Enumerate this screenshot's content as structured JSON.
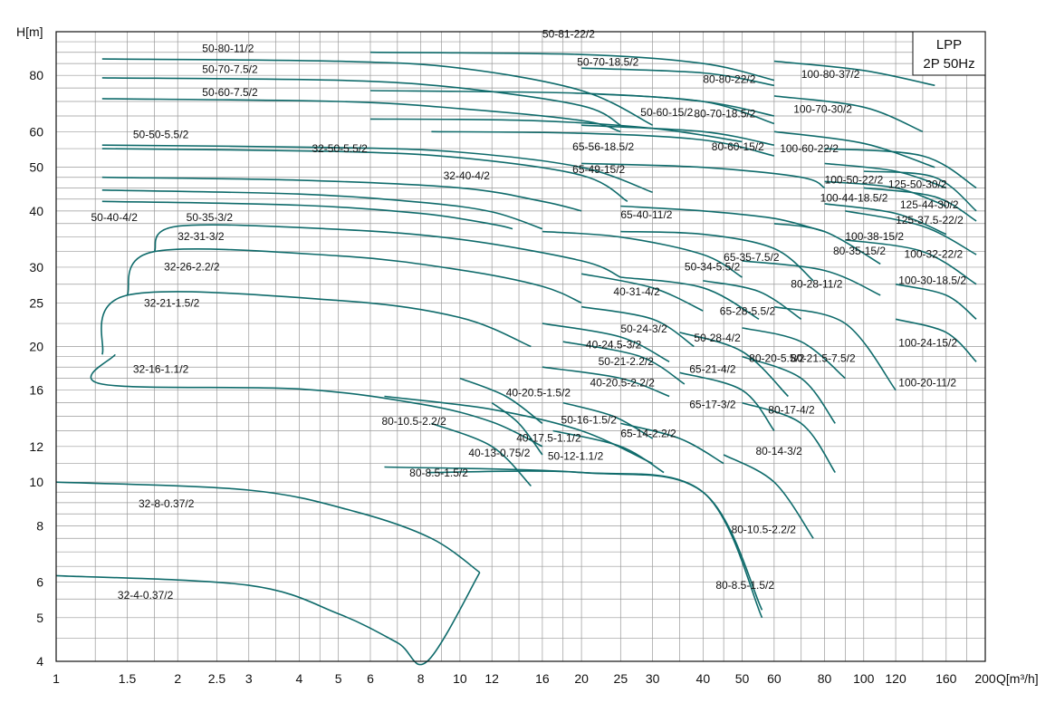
{
  "chart_data": {
    "type": "line",
    "title": "",
    "legend": {
      "line1": "LPP",
      "line2": "2P 50Hz",
      "placement": "top-right"
    },
    "xlabel": "Q[m³/h]",
    "ylabel": "H[m]",
    "xscale": "log",
    "yscale": "log",
    "xlim": [
      1,
      200
    ],
    "ylim": [
      4,
      100
    ],
    "grid": true,
    "color": "#0f6b6b",
    "x_ticks": [
      1,
      1.5,
      2,
      2.5,
      3,
      4,
      5,
      6,
      8,
      10,
      12,
      16,
      20,
      25,
      30,
      40,
      50,
      60,
      80,
      100,
      120,
      160,
      200
    ],
    "x_tick_labels": [
      "1",
      "1.5",
      "2",
      "2.5",
      "3",
      "4",
      "5",
      "6",
      "8",
      "10",
      "12",
      "16",
      "20",
      "25",
      "30",
      "40",
      "50",
      "60",
      "80",
      "100",
      "120",
      "160",
      "200"
    ],
    "y_ticks": [
      4,
      5,
      6,
      8,
      10,
      12,
      16,
      20,
      25,
      30,
      40,
      50,
      60,
      80
    ],
    "y_tick_labels": [
      "4",
      "5",
      "6",
      "8",
      "10",
      "12",
      "16",
      "20",
      "25",
      "30",
      "40",
      "50",
      "60",
      "80"
    ],
    "series": [
      {
        "name": "32-4-0.37/2",
        "x": [
          1,
          3,
          5,
          7,
          8.3
        ],
        "y": [
          6.2,
          5.9,
          5.1,
          4.4,
          4.0
        ],
        "end_x": 11.2,
        "end_y": 6.3
      },
      {
        "name": "32-8-0.37/2",
        "x": [
          1,
          3,
          5.5,
          8.5,
          11.2
        ],
        "y": [
          10.0,
          9.6,
          8.6,
          7.5,
          6.3
        ]
      },
      {
        "name": "32-16-1.1/2",
        "x": [
          1.3,
          4,
          8,
          12,
          16
        ],
        "y": [
          16.5,
          16.1,
          14.9,
          13.6,
          12.0
        ],
        "start_x": 1.4,
        "start_y": 19.2
      },
      {
        "name": "32-21-1.5/2",
        "x": [
          1.5,
          5,
          10,
          15
        ],
        "y": [
          26.0,
          25.3,
          23.2,
          20.0
        ],
        "start_x": 1.3,
        "start_y": 19.2
      },
      {
        "name": "32-26-2.2/2",
        "x": [
          1.75,
          5,
          10,
          16,
          20
        ],
        "y": [
          32.5,
          31.8,
          29.6,
          27.2,
          25.0
        ],
        "start_x": 1.5,
        "start_y": 26.0
      },
      {
        "name": "32-31-3/2",
        "x": [
          2,
          5,
          10,
          20,
          25
        ],
        "y": [
          37.0,
          36.4,
          34.6,
          31.0,
          28.5
        ],
        "start_x": 1.75,
        "start_y": 32.5
      },
      {
        "name": "50-35-3/2",
        "x": [
          1.3,
          4,
          8,
          12,
          13.5
        ],
        "y": [
          42.0,
          41.2,
          39.5,
          37.4,
          36.5
        ]
      },
      {
        "name": "50-40-4/2",
        "x": [
          1.3,
          4,
          8,
          12,
          16
        ],
        "y": [
          44.5,
          43.6,
          41.8,
          39.8,
          36.5
        ]
      },
      {
        "name": "32-40-4/2",
        "x": [
          1.3,
          4,
          10,
          16,
          20
        ],
        "y": [
          47.5,
          46.8,
          45.0,
          42.0,
          40.0
        ]
      },
      {
        "name": "32-50-5.5/2",
        "x": [
          1.3,
          5,
          10,
          20,
          26
        ],
        "y": [
          55.0,
          54.2,
          52.5,
          48.0,
          42.0
        ]
      },
      {
        "name": "50-50-5.5/2",
        "x": [
          1.3,
          5,
          10,
          20,
          30
        ],
        "y": [
          56.0,
          55.3,
          54.0,
          50.0,
          44.0
        ]
      },
      {
        "name": "50-60-7.5/2",
        "x": [
          1.3,
          5,
          10,
          20,
          25
        ],
        "y": [
          71.0,
          70.0,
          67.5,
          63.5,
          60.0
        ]
      },
      {
        "name": "50-70-7.5/2",
        "x": [
          1.3,
          5,
          10,
          20,
          25
        ],
        "y": [
          79.0,
          78.0,
          75.0,
          68.5,
          62.0
        ]
      },
      {
        "name": "50-80-11/2",
        "x": [
          1.3,
          5,
          10,
          20,
          30
        ],
        "y": [
          87.0,
          86.0,
          83.0,
          74.0,
          62.0
        ]
      },
      {
        "name": "50-81-22/2",
        "x": [
          6,
          20,
          40,
          60
        ],
        "y": [
          90.0,
          89.0,
          85.0,
          78.0
        ]
      },
      {
        "name": "50-70-18.5/2",
        "x": [
          6,
          20,
          40,
          60
        ],
        "y": [
          74.0,
          73.0,
          70.0,
          65.0
        ]
      },
      {
        "name": "80-80-22/2",
        "x": [
          20,
          40,
          60
        ],
        "y": [
          83.0,
          81.0,
          76.0
        ]
      },
      {
        "name": "80-70-18.5/2",
        "x": [
          20,
          40,
          60
        ],
        "y": [
          73.0,
          70.0,
          62.5
        ]
      },
      {
        "name": "50-60-15/2",
        "x": [
          6,
          15,
          30,
          50
        ],
        "y": [
          64.0,
          63.5,
          61.0,
          57.0
        ]
      },
      {
        "name": "80-60-15/2",
        "x": [
          20,
          40,
          60
        ],
        "y": [
          62.0,
          60.0,
          56.0
        ]
      },
      {
        "name": "65-56-18.5/2",
        "x": [
          8.5,
          20,
          40,
          60
        ],
        "y": [
          60.0,
          59.5,
          57.5,
          53.0
        ]
      },
      {
        "name": "100-80-37/2",
        "x": [
          60,
          100,
          150
        ],
        "y": [
          86.0,
          82.0,
          76.0
        ]
      },
      {
        "name": "100-70-30/2",
        "x": [
          60,
          100,
          140
        ],
        "y": [
          72.0,
          68.0,
          60.0
        ]
      },
      {
        "name": "100-60-22/2",
        "x": [
          60,
          100,
          150
        ],
        "y": [
          60.0,
          56.5,
          50.0
        ]
      },
      {
        "name": "65-49-15/2",
        "x": [
          20,
          40,
          70,
          80
        ],
        "y": [
          51.0,
          50.0,
          47.5,
          45.0
        ]
      },
      {
        "name": "100-50-22/2",
        "x": [
          80,
          120,
          160
        ],
        "y": [
          51.0,
          49.0,
          45.0
        ]
      },
      {
        "name": "100-44-18.5/2",
        "x": [
          80,
          120,
          160
        ],
        "y": [
          46.5,
          45.0,
          41.0
        ]
      },
      {
        "name": "125-50-30/2",
        "x": [
          80,
          140,
          190
        ],
        "y": [
          55.0,
          53.0,
          45.0
        ]
      },
      {
        "name": "125-44-30/2",
        "x": [
          100,
          150,
          190
        ],
        "y": [
          49.0,
          47.5,
          40.0
        ]
      },
      {
        "name": "125-37.5-22/2",
        "x": [
          100,
          150,
          190
        ],
        "y": [
          45.0,
          43.0,
          38.0
        ]
      },
      {
        "name": "65-40-11/2",
        "x": [
          25,
          40,
          60,
          80
        ],
        "y": [
          41.0,
          40.0,
          38.5,
          36.0
        ]
      },
      {
        "name": "100-38-15/2",
        "x": [
          80,
          120,
          160
        ],
        "y": [
          41.5,
          39.5,
          35.5
        ]
      },
      {
        "name": "100-32-22/2",
        "x": [
          90,
          140,
          190
        ],
        "y": [
          40.0,
          37.0,
          32.0
        ]
      },
      {
        "name": "80-35-15/2",
        "x": [
          60,
          80,
          110
        ],
        "y": [
          37.5,
          36.0,
          30.5
        ]
      },
      {
        "name": "100-30-18.5/2",
        "x": [
          90,
          140,
          190
        ],
        "y": [
          34.5,
          32.5,
          27.5
        ]
      },
      {
        "name": "65-35-7.5/2",
        "x": [
          25,
          40,
          60,
          75
        ],
        "y": [
          36.0,
          35.5,
          33.0,
          28.0
        ]
      },
      {
        "name": "50-34-5.5/2",
        "x": [
          16,
          25,
          40,
          50
        ],
        "y": [
          36.0,
          35.0,
          32.0,
          28.5
        ]
      },
      {
        "name": "80-28-11/2",
        "x": [
          50,
          80,
          110
        ],
        "y": [
          31.0,
          29.5,
          26.0
        ]
      },
      {
        "name": "100-24-15/2",
        "x": [
          120,
          160,
          190
        ],
        "y": [
          27.5,
          26.0,
          23.0
        ]
      },
      {
        "name": "100-20-11/2",
        "x": [
          120,
          160,
          190
        ],
        "y": [
          23.0,
          21.5,
          18.5
        ]
      },
      {
        "name": "40-31-4/2",
        "x": [
          20,
          30,
          40
        ],
        "y": [
          29.0,
          27.0,
          24.0
        ]
      },
      {
        "name": "65-28-5.5/2",
        "x": [
          40,
          55,
          70
        ],
        "y": [
          28.0,
          26.5,
          23.0
        ]
      },
      {
        "name": "50-28-4/2",
        "x": [
          25,
          40,
          55
        ],
        "y": [
          28.5,
          27.0,
          23.0
        ]
      },
      {
        "name": "80-21.5-7.5/2",
        "x": [
          60,
          90,
          120
        ],
        "y": [
          24.5,
          22.5,
          16.0
        ]
      },
      {
        "name": "80-20-5.5/2",
        "x": [
          50,
          70,
          90
        ],
        "y": [
          22.0,
          20.5,
          17.0
        ]
      },
      {
        "name": "50-24-3/2",
        "x": [
          20,
          30,
          38
        ],
        "y": [
          24.5,
          23.0,
          20.0
        ]
      },
      {
        "name": "40-24.5-3/2",
        "x": [
          16,
          25,
          33
        ],
        "y": [
          22.5,
          21.0,
          18.5
        ]
      },
      {
        "name": "50-21-2.2/2",
        "x": [
          18,
          28,
          36
        ],
        "y": [
          20.5,
          19.0,
          16.5
        ]
      },
      {
        "name": "40-20.5-2.2/2",
        "x": [
          16,
          25,
          33
        ],
        "y": [
          18.0,
          17.0,
          15.5
        ]
      },
      {
        "name": "65-21-4/2",
        "x": [
          35,
          50,
          65
        ],
        "y": [
          21.5,
          19.5,
          15.5
        ]
      },
      {
        "name": "80-17-4/2",
        "x": [
          50,
          70,
          85
        ],
        "y": [
          19.0,
          17.0,
          13.5
        ]
      },
      {
        "name": "65-17-3/2",
        "x": [
          35,
          50,
          60
        ],
        "y": [
          17.5,
          16.0,
          13.0
        ]
      },
      {
        "name": "80-14-3/2",
        "x": [
          50,
          70,
          85
        ],
        "y": [
          15.0,
          13.5,
          10.5
        ]
      },
      {
        "name": "40-20.5-1.5/2",
        "x": [
          10,
          13,
          16
        ],
        "y": [
          17.0,
          15.5,
          13.5
        ]
      },
      {
        "name": "40-17.5-1.1/2",
        "x": [
          12,
          14,
          16
        ],
        "y": [
          15.0,
          13.5,
          11.5
        ]
      },
      {
        "name": "50-16-1.5/2",
        "x": [
          18,
          24,
          30
        ],
        "y": [
          15.0,
          14.0,
          12.5
        ]
      },
      {
        "name": "65-14-2.2/2",
        "x": [
          25,
          35,
          45
        ],
        "y": [
          13.5,
          12.5,
          11.0
        ]
      },
      {
        "name": "80-10.5-2.2/2",
        "x": [
          45,
          60,
          75
        ],
        "y": [
          11.5,
          10.0,
          7.5
        ]
      },
      {
        "name": "80-8.5-1.5/2",
        "x": [
          8.3,
          20,
          40,
          56
        ],
        "y": [
          10.5,
          10.5,
          9.5,
          5.0
        ]
      },
      {
        "name": "80-10.5-2.2/2",
        "x": [
          6.5,
          12,
          20,
          30
        ],
        "y": [
          15.5,
          14.5,
          13.0,
          11.0
        ]
      },
      {
        "name": "40-13-0.75/2",
        "x": [
          8.5,
          12,
          15
        ],
        "y": [
          13.5,
          12.0,
          9.8
        ]
      },
      {
        "name": "50-12-1.1/2",
        "x": [
          17,
          25,
          32
        ],
        "y": [
          13.0,
          12.0,
          10.5
        ]
      },
      {
        "name": "80-8.5-1.5/2",
        "x": [
          6.5,
          20,
          40,
          56
        ],
        "y": [
          10.8,
          10.5,
          9.5,
          5.2
        ]
      }
    ],
    "annotations": [
      {
        "text": "50-80-11/2",
        "x": 2.3,
        "y": 90
      },
      {
        "text": "50-70-7.5/2",
        "x": 2.3,
        "y": 81
      },
      {
        "text": "50-60-7.5/2",
        "x": 2.3,
        "y": 72
      },
      {
        "text": "50-50-5.5/2",
        "x": 1.55,
        "y": 58
      },
      {
        "text": "32-50-5.5/2",
        "x": 4.3,
        "y": 54
      },
      {
        "text": "32-40-4/2",
        "x": 9.1,
        "y": 47
      },
      {
        "text": "50-40-4/2",
        "x": 1.22,
        "y": 38
      },
      {
        "text": "50-35-3/2",
        "x": 2.1,
        "y": 38
      },
      {
        "text": "32-31-3/2",
        "x": 2.0,
        "y": 34.5
      },
      {
        "text": "32-26-2.2/2",
        "x": 1.85,
        "y": 29.5
      },
      {
        "text": "32-21-1.5/2",
        "x": 1.65,
        "y": 24.5
      },
      {
        "text": "32-16-1.1/2",
        "x": 1.55,
        "y": 17.5
      },
      {
        "text": "32-8-0.37/2",
        "x": 1.6,
        "y": 8.8
      },
      {
        "text": "32-4-0.37/2",
        "x": 1.42,
        "y": 5.5
      },
      {
        "text": "50-81-22/2",
        "x": 16,
        "y": 97
      },
      {
        "text": "50-70-18.5/2",
        "x": 19.5,
        "y": 84
      },
      {
        "text": "80-80-22/2",
        "x": 40,
        "y": 77
      },
      {
        "text": "100-80-37/2",
        "x": 70,
        "y": 79
      },
      {
        "text": "50-60-15/2",
        "x": 28,
        "y": 65
      },
      {
        "text": "80-70-18.5/2",
        "x": 38,
        "y": 64.5
      },
      {
        "text": "100-70-30/2",
        "x": 67,
        "y": 66
      },
      {
        "text": "65-56-18.5/2",
        "x": 19,
        "y": 54.5
      },
      {
        "text": "80-60-15/2",
        "x": 42,
        "y": 54.5
      },
      {
        "text": "100-60-22/2",
        "x": 62,
        "y": 54
      },
      {
        "text": "65-49-15/2",
        "x": 19,
        "y": 48.5
      },
      {
        "text": "100-50-22/2",
        "x": 80,
        "y": 46
      },
      {
        "text": "125-50-30/2",
        "x": 115,
        "y": 45
      },
      {
        "text": "100-44-18.5/2",
        "x": 78,
        "y": 42
      },
      {
        "text": "125-44-30/2",
        "x": 123,
        "y": 40.5
      },
      {
        "text": "125-37.5-22/2",
        "x": 120,
        "y": 37.5
      },
      {
        "text": "65-40-11/2",
        "x": 25,
        "y": 38.5
      },
      {
        "text": "100-38-15/2",
        "x": 90,
        "y": 34.5
      },
      {
        "text": "80-35-15/2",
        "x": 84,
        "y": 32
      },
      {
        "text": "100-32-22/2",
        "x": 126,
        "y": 31.5
      },
      {
        "text": "100-30-18.5/2",
        "x": 122,
        "y": 27.5
      },
      {
        "text": "65-35-7.5/2",
        "x": 45,
        "y": 31
      },
      {
        "text": "50-34-5.5/2",
        "x": 36,
        "y": 29.5
      },
      {
        "text": "80-28-11/2",
        "x": 66,
        "y": 27
      },
      {
        "text": "40-31-4/2",
        "x": 24,
        "y": 26
      },
      {
        "text": "65-28-5.5/2",
        "x": 44,
        "y": 23.5
      },
      {
        "text": "50-28-4/2",
        "x": 38,
        "y": 20.5
      },
      {
        "text": "50-24-3/2",
        "x": 25,
        "y": 21.5
      },
      {
        "text": "40-24.5-3/2",
        "x": 20.5,
        "y": 19.8
      },
      {
        "text": "50-21-2.2/2",
        "x": 22,
        "y": 18.2
      },
      {
        "text": "40-20.5-2.2/2",
        "x": 21,
        "y": 16.3
      },
      {
        "text": "80-21.5-7.5/2",
        "x": 66,
        "y": 18.5
      },
      {
        "text": "80-20-5.5/2",
        "x": 52,
        "y": 18.5
      },
      {
        "text": "100-24-15/2",
        "x": 122,
        "y": 20
      },
      {
        "text": "100-20-11/2",
        "x": 122,
        "y": 16.3
      },
      {
        "text": "65-21-4/2",
        "x": 37,
        "y": 17.5
      },
      {
        "text": "65-17-3/2",
        "x": 37,
        "y": 14.6
      },
      {
        "text": "80-17-4/2",
        "x": 58,
        "y": 14.2
      },
      {
        "text": "80-14-3/2",
        "x": 54,
        "y": 11.5
      },
      {
        "text": "40-20.5-1.5/2",
        "x": 13,
        "y": 15.5
      },
      {
        "text": "40-17.5-1.1/2",
        "x": 13.8,
        "y": 12.3
      },
      {
        "text": "50-16-1.5/2",
        "x": 17.8,
        "y": 13.5
      },
      {
        "text": "65-14-2.2/2",
        "x": 25,
        "y": 12.6
      },
      {
        "text": "80-10.5-2.2/2",
        "x": 6.4,
        "y": 13.4
      },
      {
        "text": "40-13-0.75/2",
        "x": 10.5,
        "y": 11.4
      },
      {
        "text": "50-12-1.1/2",
        "x": 16.5,
        "y": 11.2
      },
      {
        "text": "80-8.5-1.5/2",
        "x": 7.5,
        "y": 10.3
      },
      {
        "text": "80-10.5-2.2/2",
        "x": 47,
        "y": 7.7
      },
      {
        "text": "80-8.5-1.5/2",
        "x": 43,
        "y": 5.8
      }
    ]
  }
}
